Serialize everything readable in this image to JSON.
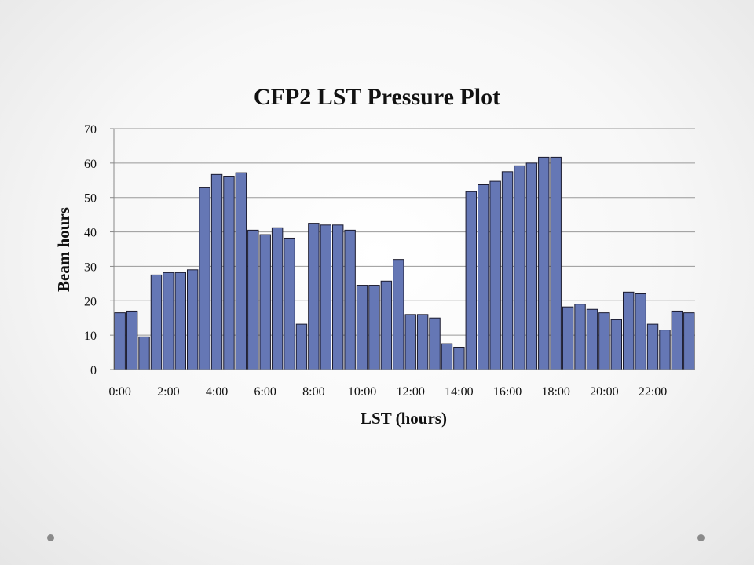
{
  "chart_data": {
    "type": "bar",
    "title": "CFP2 LST Pressure Plot",
    "xlabel": "LST (hours)",
    "ylabel": "Beam hours",
    "ylim": [
      0,
      70
    ],
    "yticks": [
      "0",
      "10",
      "20",
      "30",
      "40",
      "50",
      "60",
      "70"
    ],
    "xtick_labels": [
      "0:00",
      "2:00",
      "4:00",
      "6:00",
      "8:00",
      "10:00",
      "12:00",
      "14:00",
      "16:00",
      "18:00",
      "20:00",
      "22:00"
    ],
    "grid": "horizontal",
    "values": [
      16.5,
      17,
      9.5,
      27.5,
      28.2,
      28.2,
      29,
      53,
      56.7,
      56.2,
      57.2,
      40.5,
      39.2,
      41.2,
      38.2,
      13.2,
      42.5,
      42,
      42,
      40.5,
      24.5,
      24.5,
      25.7,
      32,
      16,
      16,
      15,
      7.5,
      6.5,
      51.7,
      53.7,
      54.7,
      57.5,
      59.2,
      60,
      61.7,
      61.7,
      18.2,
      19,
      17.5,
      16.5,
      14.5,
      22.5,
      22,
      13.2,
      11.5,
      17,
      16.5
    ],
    "bar_color": "#6577b5"
  }
}
